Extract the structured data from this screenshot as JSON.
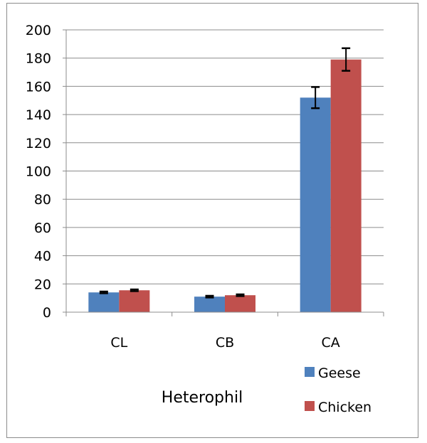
{
  "chart_data": {
    "type": "bar",
    "xlabel": "Heterophil",
    "categories": [
      "CL",
      "CB",
      "CA"
    ],
    "ylim": [
      0,
      200
    ],
    "yticks": [
      0,
      20,
      40,
      60,
      80,
      100,
      120,
      140,
      160,
      180,
      200
    ],
    "grid": true,
    "legend_position": "bottom-right",
    "series": [
      {
        "name": "Geese",
        "color": "#4f81bd",
        "values": [
          14,
          11,
          152
        ],
        "errors": [
          0.6,
          0.6,
          7.5
        ]
      },
      {
        "name": "Chicken",
        "color": "#c0504d",
        "values": [
          15.5,
          12,
          179
        ],
        "errors": [
          0.6,
          0.6,
          8
        ]
      }
    ]
  }
}
